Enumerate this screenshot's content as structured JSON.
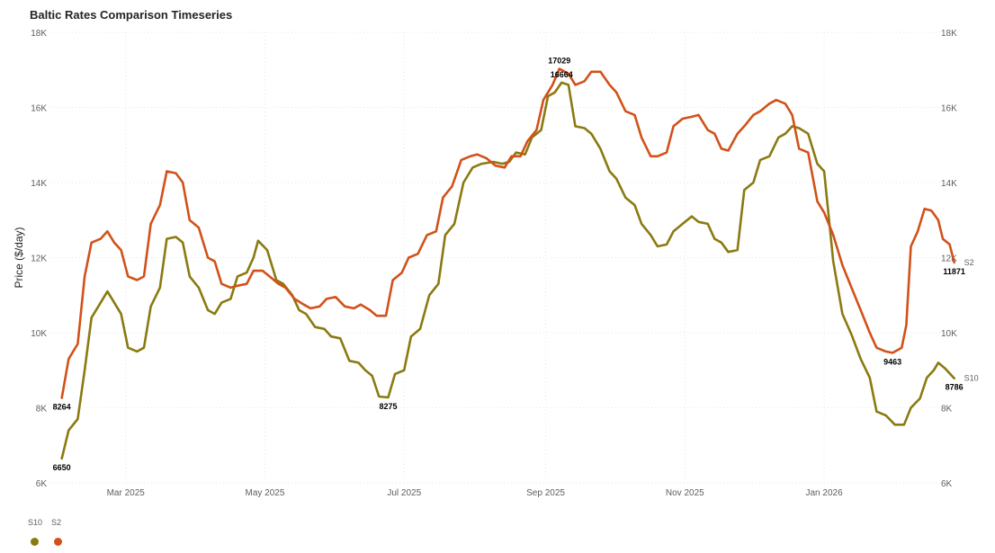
{
  "title": "Baltic Rates Comparison Timeseries",
  "chart_data": {
    "type": "line",
    "title": "Baltic Rates Comparison Timeseries",
    "ylabel": "Price ($/day)",
    "ylim": [
      6000,
      18000
    ],
    "yticks": [
      {
        "value": 6000,
        "label": "6K"
      },
      {
        "value": 8000,
        "label": "8K"
      },
      {
        "value": 10000,
        "label": "10K"
      },
      {
        "value": 12000,
        "label": "12K"
      },
      {
        "value": 14000,
        "label": "14K"
      },
      {
        "value": 16000,
        "label": "16K"
      },
      {
        "value": 18000,
        "label": "18K"
      }
    ],
    "xrange": [
      "2025-01-27",
      "2026-02-22"
    ],
    "xticks": [
      {
        "date": "2025-03-01",
        "label": "Mar 2025"
      },
      {
        "date": "2025-05-01",
        "label": "May 2025"
      },
      {
        "date": "2025-07-01",
        "label": "Jul 2025"
      },
      {
        "date": "2025-09-01",
        "label": "Sep 2025"
      },
      {
        "date": "2025-11-01",
        "label": "Nov 2025"
      },
      {
        "date": "2026-01-01",
        "label": "Jan 2026"
      }
    ],
    "grid": true,
    "legend_position": "bottom-left",
    "series": [
      {
        "name": "S10",
        "color": "#8a7a10",
        "points": [
          [
            "2025-02-01",
            6650
          ],
          [
            "2025-02-04",
            7400
          ],
          [
            "2025-02-08",
            7700
          ],
          [
            "2025-02-11",
            9000
          ],
          [
            "2025-02-14",
            10400
          ],
          [
            "2025-02-17",
            10700
          ],
          [
            "2025-02-21",
            11100
          ],
          [
            "2025-02-24",
            10800
          ],
          [
            "2025-02-27",
            10500
          ],
          [
            "2025-03-02",
            9600
          ],
          [
            "2025-03-06",
            9500
          ],
          [
            "2025-03-09",
            9600
          ],
          [
            "2025-03-12",
            10700
          ],
          [
            "2025-03-16",
            11200
          ],
          [
            "2025-03-19",
            12500
          ],
          [
            "2025-03-23",
            12550
          ],
          [
            "2025-03-26",
            12400
          ],
          [
            "2025-03-29",
            11500
          ],
          [
            "2025-04-02",
            11200
          ],
          [
            "2025-04-06",
            10600
          ],
          [
            "2025-04-09",
            10500
          ],
          [
            "2025-04-12",
            10800
          ],
          [
            "2025-04-16",
            10900
          ],
          [
            "2025-04-19",
            11500
          ],
          [
            "2025-04-23",
            11600
          ],
          [
            "2025-04-26",
            12000
          ],
          [
            "2025-04-28",
            12450
          ],
          [
            "2025-05-02",
            12200
          ],
          [
            "2025-05-06",
            11400
          ],
          [
            "2025-05-09",
            11300
          ],
          [
            "2025-05-13",
            11000
          ],
          [
            "2025-05-16",
            10600
          ],
          [
            "2025-05-19",
            10500
          ],
          [
            "2025-05-23",
            10150
          ],
          [
            "2025-05-27",
            10100
          ],
          [
            "2025-05-30",
            9900
          ],
          [
            "2025-06-03",
            9850
          ],
          [
            "2025-06-07",
            9250
          ],
          [
            "2025-06-11",
            9200
          ],
          [
            "2025-06-14",
            9000
          ],
          [
            "2025-06-17",
            8850
          ],
          [
            "2025-06-20",
            8300
          ],
          [
            "2025-06-24",
            8275
          ],
          [
            "2025-06-27",
            8900
          ],
          [
            "2025-07-01",
            9000
          ],
          [
            "2025-07-04",
            9900
          ],
          [
            "2025-07-08",
            10100
          ],
          [
            "2025-07-12",
            11000
          ],
          [
            "2025-07-16",
            11300
          ],
          [
            "2025-07-19",
            12600
          ],
          [
            "2025-07-23",
            12900
          ],
          [
            "2025-07-27",
            14000
          ],
          [
            "2025-07-31",
            14400
          ],
          [
            "2025-08-04",
            14500
          ],
          [
            "2025-08-09",
            14550
          ],
          [
            "2025-08-13",
            14500
          ],
          [
            "2025-08-16",
            14550
          ],
          [
            "2025-08-19",
            14800
          ],
          [
            "2025-08-23",
            14750
          ],
          [
            "2025-08-26",
            15200
          ],
          [
            "2025-08-30",
            15400
          ],
          [
            "2025-09-02",
            16300
          ],
          [
            "2025-09-05",
            16400
          ],
          [
            "2025-09-08",
            16664
          ],
          [
            "2025-09-11",
            16600
          ],
          [
            "2025-09-14",
            15500
          ],
          [
            "2025-09-18",
            15450
          ],
          [
            "2025-09-21",
            15300
          ],
          [
            "2025-09-25",
            14900
          ],
          [
            "2025-09-29",
            14300
          ],
          [
            "2025-10-02",
            14100
          ],
          [
            "2025-10-06",
            13600
          ],
          [
            "2025-10-10",
            13400
          ],
          [
            "2025-10-13",
            12900
          ],
          [
            "2025-10-17",
            12600
          ],
          [
            "2025-10-20",
            12300
          ],
          [
            "2025-10-24",
            12350
          ],
          [
            "2025-10-27",
            12700
          ],
          [
            "2025-10-31",
            12900
          ],
          [
            "2025-11-04",
            13100
          ],
          [
            "2025-11-07",
            12950
          ],
          [
            "2025-11-11",
            12900
          ],
          [
            "2025-11-14",
            12500
          ],
          [
            "2025-11-17",
            12400
          ],
          [
            "2025-11-20",
            12150
          ],
          [
            "2025-11-24",
            12200
          ],
          [
            "2025-11-27",
            13800
          ],
          [
            "2025-12-01",
            14000
          ],
          [
            "2025-12-04",
            14600
          ],
          [
            "2025-12-08",
            14700
          ],
          [
            "2025-12-12",
            15200
          ],
          [
            "2025-12-15",
            15300
          ],
          [
            "2025-12-18",
            15500
          ],
          [
            "2025-12-21",
            15450
          ],
          [
            "2025-12-25",
            15300
          ],
          [
            "2025-12-29",
            14500
          ],
          [
            "2026-01-01",
            14300
          ],
          [
            "2026-01-05",
            11900
          ],
          [
            "2026-01-09",
            10500
          ],
          [
            "2026-01-13",
            9950
          ],
          [
            "2026-01-17",
            9300
          ],
          [
            "2026-01-21",
            8800
          ],
          [
            "2026-01-24",
            7900
          ],
          [
            "2026-01-28",
            7800
          ],
          [
            "2026-02-01",
            7550
          ],
          [
            "2026-02-05",
            7550
          ],
          [
            "2026-02-08",
            8000
          ],
          [
            "2026-02-12",
            8250
          ],
          [
            "2026-02-15",
            8800
          ],
          [
            "2026-02-18",
            9000
          ],
          [
            "2026-02-20",
            9200
          ],
          [
            "2026-02-23",
            9050
          ],
          [
            "2026-02-27",
            8786
          ]
        ],
        "labels": [
          {
            "date": "2025-02-01",
            "value": 6650,
            "text": "6650",
            "pos": "below"
          },
          {
            "date": "2025-06-24",
            "value": 8275,
            "text": "8275",
            "pos": "below"
          },
          {
            "date": "2025-09-08",
            "value": 16664,
            "text": "16664",
            "pos": "above"
          },
          {
            "date": "2026-02-27",
            "value": 8786,
            "text": "8786",
            "pos": "below"
          }
        ],
        "end_label": "S10"
      },
      {
        "name": "S2",
        "color": "#d2511a",
        "points": [
          [
            "2025-02-01",
            8264
          ],
          [
            "2025-02-04",
            9300
          ],
          [
            "2025-02-08",
            9700
          ],
          [
            "2025-02-11",
            11500
          ],
          [
            "2025-02-14",
            12400
          ],
          [
            "2025-02-18",
            12500
          ],
          [
            "2025-02-21",
            12700
          ],
          [
            "2025-02-24",
            12400
          ],
          [
            "2025-02-27",
            12200
          ],
          [
            "2025-03-02",
            11500
          ],
          [
            "2025-03-06",
            11400
          ],
          [
            "2025-03-09",
            11500
          ],
          [
            "2025-03-12",
            12900
          ],
          [
            "2025-03-16",
            13400
          ],
          [
            "2025-03-19",
            14300
          ],
          [
            "2025-03-23",
            14250
          ],
          [
            "2025-03-26",
            14000
          ],
          [
            "2025-03-29",
            13000
          ],
          [
            "2025-04-02",
            12800
          ],
          [
            "2025-04-06",
            12000
          ],
          [
            "2025-04-09",
            11900
          ],
          [
            "2025-04-12",
            11300
          ],
          [
            "2025-04-16",
            11200
          ],
          [
            "2025-04-19",
            11250
          ],
          [
            "2025-04-23",
            11300
          ],
          [
            "2025-04-26",
            11650
          ],
          [
            "2025-04-30",
            11650
          ],
          [
            "2025-05-03",
            11500
          ],
          [
            "2025-05-07",
            11300
          ],
          [
            "2025-05-10",
            11200
          ],
          [
            "2025-05-14",
            10900
          ],
          [
            "2025-05-18",
            10750
          ],
          [
            "2025-05-21",
            10650
          ],
          [
            "2025-05-25",
            10700
          ],
          [
            "2025-05-28",
            10900
          ],
          [
            "2025-06-01",
            10950
          ],
          [
            "2025-06-05",
            10700
          ],
          [
            "2025-06-09",
            10650
          ],
          [
            "2025-06-12",
            10750
          ],
          [
            "2025-06-16",
            10600
          ],
          [
            "2025-06-19",
            10450
          ],
          [
            "2025-06-23",
            10450
          ],
          [
            "2025-06-26",
            11400
          ],
          [
            "2025-06-30",
            11600
          ],
          [
            "2025-07-03",
            12000
          ],
          [
            "2025-07-07",
            12100
          ],
          [
            "2025-07-11",
            12600
          ],
          [
            "2025-07-15",
            12700
          ],
          [
            "2025-07-18",
            13600
          ],
          [
            "2025-07-22",
            13900
          ],
          [
            "2025-07-26",
            14600
          ],
          [
            "2025-07-30",
            14700
          ],
          [
            "2025-08-02",
            14750
          ],
          [
            "2025-08-06",
            14650
          ],
          [
            "2025-08-10",
            14450
          ],
          [
            "2025-08-14",
            14400
          ],
          [
            "2025-08-17",
            14700
          ],
          [
            "2025-08-21",
            14700
          ],
          [
            "2025-08-24",
            15100
          ],
          [
            "2025-08-28",
            15400
          ],
          [
            "2025-08-31",
            16200
          ],
          [
            "2025-09-04",
            16600
          ],
          [
            "2025-09-07",
            17029
          ],
          [
            "2025-09-11",
            16900
          ],
          [
            "2025-09-14",
            16600
          ],
          [
            "2025-09-18",
            16700
          ],
          [
            "2025-09-21",
            16950
          ],
          [
            "2025-09-25",
            16950
          ],
          [
            "2025-09-29",
            16600
          ],
          [
            "2025-10-02",
            16400
          ],
          [
            "2025-10-06",
            15900
          ],
          [
            "2025-10-10",
            15800
          ],
          [
            "2025-10-13",
            15200
          ],
          [
            "2025-10-17",
            14700
          ],
          [
            "2025-10-20",
            14700
          ],
          [
            "2025-10-24",
            14800
          ],
          [
            "2025-10-27",
            15500
          ],
          [
            "2025-10-31",
            15700
          ],
          [
            "2025-11-04",
            15750
          ],
          [
            "2025-11-07",
            15800
          ],
          [
            "2025-11-11",
            15400
          ],
          [
            "2025-11-14",
            15300
          ],
          [
            "2025-11-17",
            14900
          ],
          [
            "2025-11-20",
            14850
          ],
          [
            "2025-11-24",
            15300
          ],
          [
            "2025-11-27",
            15500
          ],
          [
            "2025-12-01",
            15800
          ],
          [
            "2025-12-04",
            15900
          ],
          [
            "2025-12-08",
            16100
          ],
          [
            "2025-12-11",
            16200
          ],
          [
            "2025-12-15",
            16100
          ],
          [
            "2025-12-18",
            15800
          ],
          [
            "2025-12-21",
            14900
          ],
          [
            "2025-12-25",
            14800
          ],
          [
            "2025-12-29",
            13500
          ],
          [
            "2026-01-01",
            13200
          ],
          [
            "2026-01-05",
            12600
          ],
          [
            "2026-01-09",
            11800
          ],
          [
            "2026-01-13",
            11200
          ],
          [
            "2026-01-17",
            10600
          ],
          [
            "2026-01-21",
            10000
          ],
          [
            "2026-01-24",
            9600
          ],
          [
            "2026-01-28",
            9500
          ],
          [
            "2026-01-31",
            9463
          ],
          [
            "2026-02-04",
            9600
          ],
          [
            "2026-02-06",
            10200
          ],
          [
            "2026-02-08",
            12300
          ],
          [
            "2026-02-11",
            12700
          ],
          [
            "2026-02-14",
            13300
          ],
          [
            "2026-02-17",
            13250
          ],
          [
            "2026-02-20",
            13000
          ],
          [
            "2026-02-22",
            12500
          ],
          [
            "2026-02-25",
            12350
          ],
          [
            "2026-02-27",
            11871
          ]
        ],
        "labels": [
          {
            "date": "2025-02-01",
            "value": 8264,
            "text": "8264",
            "pos": "below"
          },
          {
            "date": "2025-09-07",
            "value": 17029,
            "text": "17029",
            "pos": "above"
          },
          {
            "date": "2026-01-31",
            "value": 9463,
            "text": "9463",
            "pos": "below"
          },
          {
            "date": "2026-02-27",
            "value": 11871,
            "text": "11871",
            "pos": "below"
          }
        ],
        "end_label": "S2"
      }
    ]
  },
  "legend": {
    "items": [
      {
        "label": "S10",
        "color": "#8a7a10"
      },
      {
        "label": "S2",
        "color": "#d2511a"
      }
    ]
  }
}
